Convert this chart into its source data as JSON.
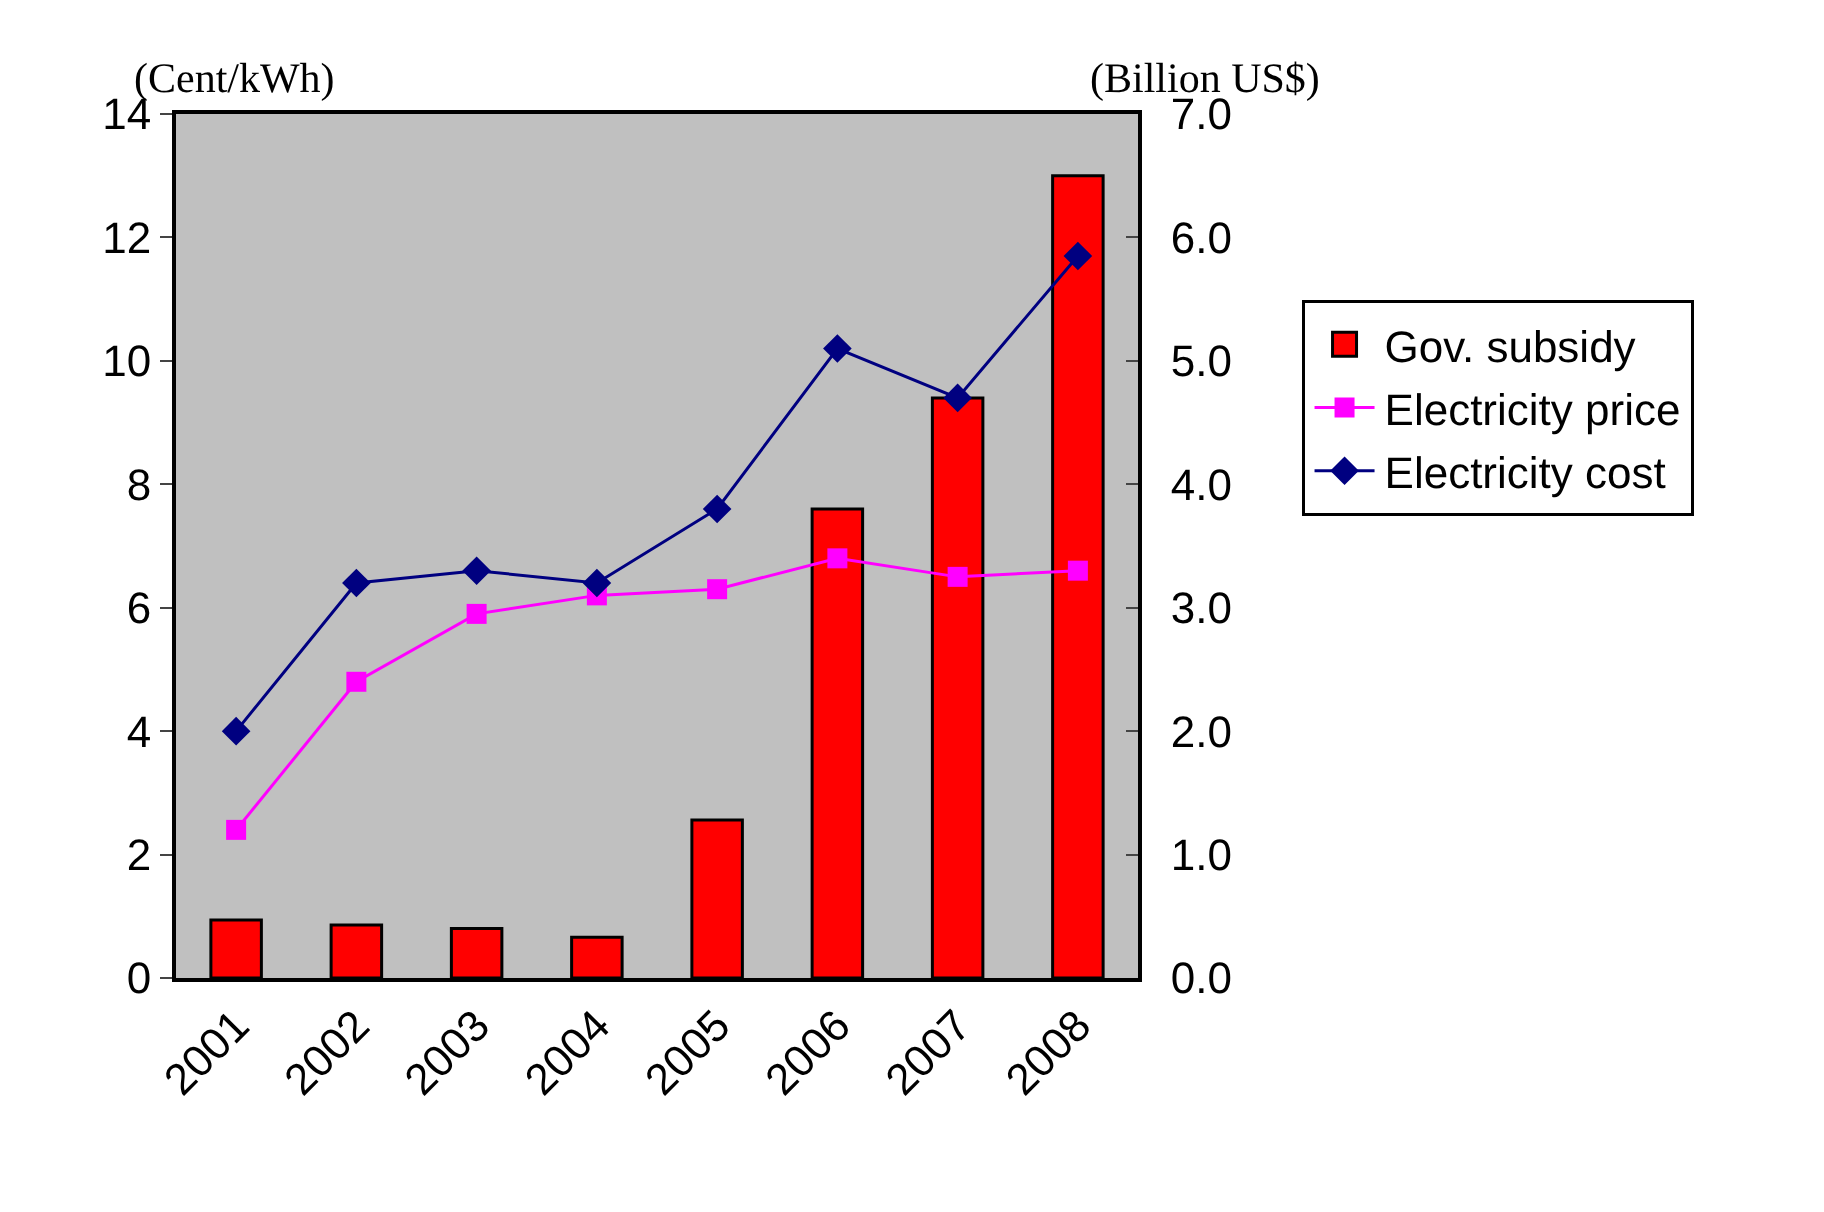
{
  "chart_data": {
    "type": "bar",
    "ylabel": "(Cent/kWh)",
    "y2label": "(Billion US$)",
    "categories": [
      "2001",
      "2002",
      "2003",
      "2004",
      "2005",
      "2006",
      "2007",
      "2008"
    ],
    "series": [
      {
        "name": "Gov. subsidy",
        "axis": "y2",
        "color": "#ff0000",
        "values": [
          0.47,
          0.43,
          0.4,
          0.33,
          1.28,
          3.8,
          4.7,
          6.5
        ]
      },
      {
        "name": "Electricity price",
        "type": "line",
        "color": "#ff00ff",
        "marker": "square",
        "values": [
          2.4,
          4.8,
          5.9,
          6.2,
          6.3,
          6.8,
          6.5,
          6.6
        ]
      },
      {
        "name": "Electricity cost",
        "type": "line",
        "color": "#000080",
        "marker": "diamond",
        "values": [
          4.0,
          6.4,
          6.6,
          6.4,
          7.6,
          10.2,
          9.4,
          11.7
        ]
      }
    ],
    "ylim": [
      0,
      14
    ],
    "yticks": [
      0,
      2,
      4,
      6,
      8,
      10,
      12,
      14
    ],
    "y2lim": [
      0,
      7
    ],
    "y2ticks": [
      {
        "value": 0,
        "label": "0.0"
      },
      {
        "value": 1,
        "label": "1.0"
      },
      {
        "value": 2,
        "label": "2.0"
      },
      {
        "value": 3,
        "label": "3.0"
      },
      {
        "value": 4,
        "label": "4.0"
      },
      {
        "value": 5,
        "label": "5.0"
      },
      {
        "value": 6,
        "label": "6.0"
      },
      {
        "value": 7,
        "label": "7.0"
      }
    ],
    "grid": false,
    "legend": "right"
  }
}
